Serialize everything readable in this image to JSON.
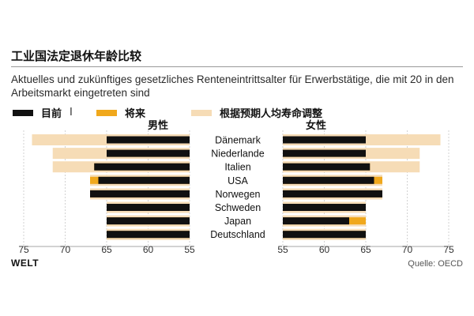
{
  "title": "工业国法定退休年龄比较",
  "subtitle": "Aktuelles und zukünftiges gesetzliches Renteneintrittsalter für Erwerbstätige, die mit 20 in den Arbeitsmarkt eingetreten sind",
  "brand": "WELT",
  "source": "Quelle: OECD",
  "legend": {
    "current": "目前",
    "current_mark": "I",
    "future": "将来",
    "adjusted": "根据预期人均寿命调整"
  },
  "colors": {
    "current": "#111111",
    "future": "#f0a81c",
    "adjusted": "#f6dcb6"
  },
  "chart_data": {
    "type": "bar",
    "orientation": "horizontal-butterfly",
    "categories": [
      "Dänemark",
      "Niederlande",
      "Italien",
      "USA",
      "Norwegen",
      "Schweden",
      "Japan",
      "Deutschland"
    ],
    "male_label": "男性",
    "female_label": "女性",
    "male": {
      "current": [
        65,
        65,
        66.5,
        66,
        67,
        65,
        65,
        65
      ],
      "future": [
        65,
        65,
        66.5,
        67,
        67,
        65,
        65,
        65
      ],
      "adjusted": [
        74,
        71.5,
        71.5,
        67,
        67,
        65,
        65,
        65
      ]
    },
    "female": {
      "current": [
        65,
        65,
        65.5,
        66,
        67,
        65,
        63,
        65
      ],
      "future": [
        65,
        65,
        65.5,
        67,
        67,
        65,
        65,
        65
      ],
      "adjusted": [
        74,
        71.5,
        71.5,
        67,
        67,
        65,
        65,
        65
      ]
    },
    "male_axis": {
      "ticks": [
        75,
        70,
        65,
        60,
        55
      ],
      "min": 55,
      "max": 75
    },
    "female_axis": {
      "ticks": [
        55,
        60,
        65,
        70,
        75
      ],
      "min": 55,
      "max": 75
    }
  }
}
